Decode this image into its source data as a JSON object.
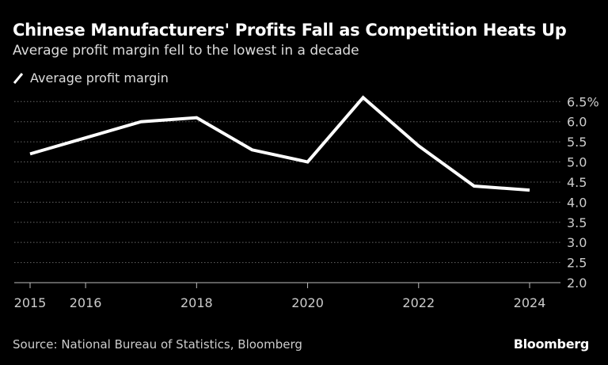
{
  "chart_data": {
    "type": "line",
    "title": "Chinese Manufacturers' Profits Fall as Competition Heats Up",
    "subtitle": "Average profit margin fell to the lowest in a decade",
    "x": [
      2015,
      2016,
      2017,
      2018,
      2019,
      2020,
      2021,
      2022,
      2023,
      2024
    ],
    "series": [
      {
        "name": "Average profit margin",
        "values": [
          5.2,
          5.6,
          6.0,
          6.1,
          5.3,
          5.0,
          6.6,
          5.4,
          4.4,
          4.3
        ],
        "color": "#ffffff"
      }
    ],
    "xticks": [
      "2015",
      "2016",
      "2018",
      "2020",
      "2022",
      "2024"
    ],
    "yticks": [
      "2.0",
      "2.5",
      "3.0",
      "3.5",
      "4.0",
      "4.5",
      "5.0",
      "5.5",
      "6.0",
      "6.5%"
    ],
    "ylim": [
      2.0,
      6.5
    ],
    "grid": true,
    "legend_placement": "top-left",
    "source": "Source: National Bureau of Statistics, Bloomberg",
    "logo": "Bloomberg"
  }
}
